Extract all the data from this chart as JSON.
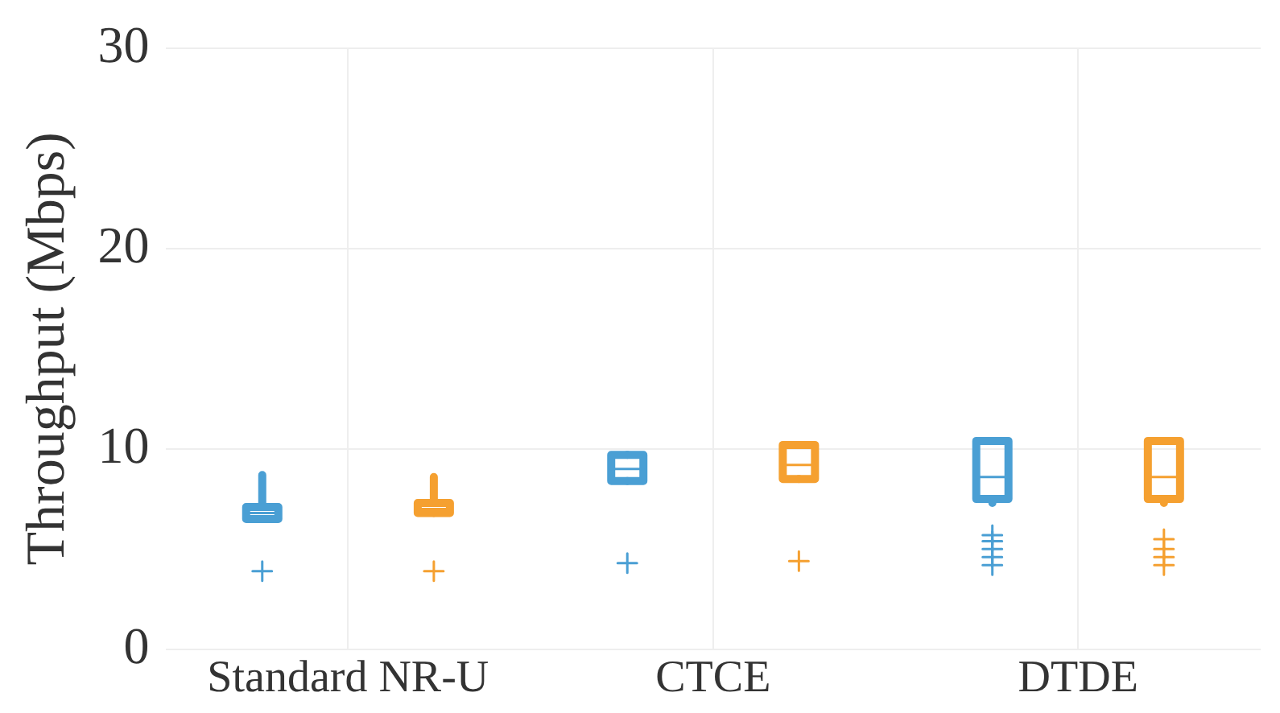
{
  "chart_data": {
    "type": "box",
    "ylabel": "Throughput (Mbps)",
    "categories": [
      "Standard NR-U",
      "CTCE",
      "DTDE"
    ],
    "ylim": [
      0,
      30
    ],
    "yticks": [
      0,
      10,
      20,
      30
    ],
    "grid": true,
    "legend": false,
    "marker": "cross",
    "series": [
      {
        "color": "#4a9fd4",
        "boxes": [
          {
            "low": 6.5,
            "q1": 6.5,
            "median": 6.8,
            "q3": 7.1,
            "high": 8.7,
            "outliers": [
              3.9
            ]
          },
          {
            "low": 8.4,
            "q1": 8.4,
            "median": 9.0,
            "q3": 9.7,
            "high": 9.7,
            "outliers": [
              4.3
            ]
          },
          {
            "low": 7.3,
            "q1": 7.5,
            "median": 8.6,
            "q3": 10.4,
            "high": 10.4,
            "outliers": [
              4.2,
              4.6,
              5.0,
              5.4,
              5.7
            ]
          }
        ]
      },
      {
        "color": "#f5a030",
        "boxes": [
          {
            "low": 6.8,
            "q1": 6.8,
            "median": 7.0,
            "q3": 7.3,
            "high": 8.6,
            "outliers": [
              3.9
            ]
          },
          {
            "low": 8.5,
            "q1": 8.5,
            "median": 9.2,
            "q3": 10.2,
            "high": 10.2,
            "outliers": [
              4.4
            ]
          },
          {
            "low": 7.3,
            "q1": 7.5,
            "median": 8.6,
            "q3": 10.4,
            "high": 10.4,
            "outliers": [
              4.2,
              4.6,
              5.0,
              5.5
            ]
          }
        ]
      }
    ]
  }
}
